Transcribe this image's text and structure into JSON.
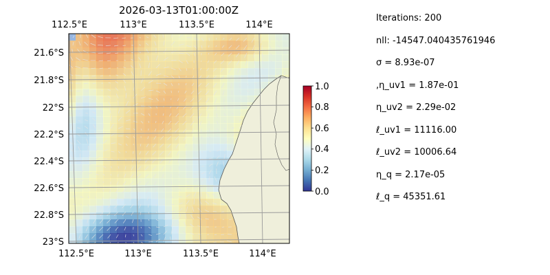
{
  "figure": {
    "background": "#ffffff"
  },
  "chart_data": {
    "type": "heatmap",
    "title": "2026-03-13T01:00:00Z",
    "map": {
      "lon_range": [
        112.5,
        114.2
      ],
      "lat_range": [
        -23.0,
        -21.45
      ],
      "top_tick_labels": [
        "112.5°E",
        "113°E",
        "113.5°E",
        "114°E"
      ],
      "bottom_tick_labels": [
        "112.5°E",
        "113°E",
        "113.5°E",
        "114°E"
      ],
      "left_tick_labels": [
        "21.6°S",
        "21.8°S",
        "22°S",
        "22.2°S",
        "22.4°S",
        "22.6°S",
        "22.8°S",
        "23°S"
      ],
      "gridlines": true,
      "ocean_color": "#97b6e1",
      "land_color": "#efefdb",
      "overlay": "quiver",
      "colorbar": {
        "range": [
          0,
          1
        ],
        "ticks": [
          "0.0",
          "0.2",
          "0.4",
          "0.6",
          "0.8",
          "1.0"
        ],
        "colormap": "RdYlBu_r",
        "colors": [
          "#313695",
          "#4575b4",
          "#74add1",
          "#abd9e9",
          "#e0f3f8",
          "#ffffbf",
          "#fee090",
          "#fdae61",
          "#f46d43",
          "#d73027",
          "#a50026"
        ]
      }
    }
  },
  "stats": [
    "Iterations: 200",
    "nll: -14547.040435761946",
    "σ = 8.93e-07",
    ",η_uv1 = 1.87e-01",
    "η_uv2 = 2.29e-02",
    "ℓ_uv1 = 11116.00",
    "ℓ_uv2 = 10006.64",
    "η_q = 2.17e-05",
    "ℓ_q = 45351.61"
  ]
}
